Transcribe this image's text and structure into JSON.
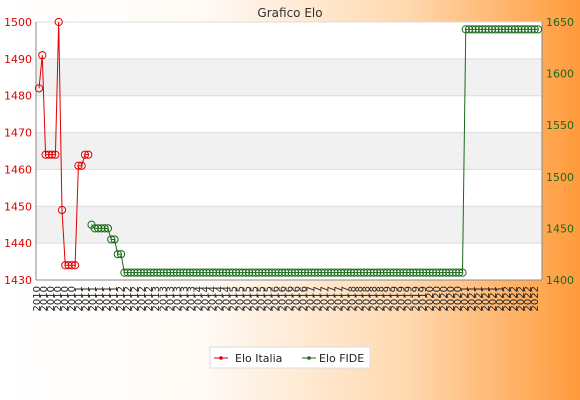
{
  "chart_data": {
    "type": "line",
    "title": "Grafico Elo",
    "x_tick_labels": [
      "2010",
      "2011",
      "2012",
      "2013",
      "2014",
      "2015",
      "2016",
      "2017",
      "2018",
      "2019",
      "2020",
      "2021",
      "2022"
    ],
    "axes": {
      "left": {
        "ylim": [
          1430,
          1500
        ],
        "ticks": [
          1430,
          1440,
          1450,
          1460,
          1470,
          1480,
          1490,
          1500
        ],
        "color": "#e00000"
      },
      "right": {
        "ylim": [
          1400,
          1650
        ],
        "ticks": [
          1400,
          1450,
          1500,
          1550,
          1600,
          1650
        ],
        "color": "#1a6a1a"
      }
    },
    "grid": true,
    "legend_position": "bottom",
    "series": [
      {
        "name": "Elo Italia",
        "axis": "left",
        "color": "#e00000",
        "values": [
          1482,
          1491,
          1464,
          1464,
          1464,
          1464,
          1500,
          1449,
          1434,
          1434,
          1434,
          1434,
          1461,
          1461,
          1464,
          1464
        ]
      },
      {
        "name": "Elo FIDE",
        "axis": "left",
        "color": "#1a6a1a",
        "start_index": 16,
        "values": [
          1445,
          1444,
          1444,
          1444,
          1444,
          1444,
          1441,
          1441,
          1437,
          1437,
          1432,
          1432,
          1432,
          1432,
          1432,
          1432,
          1432,
          1432,
          1432,
          1432,
          1432,
          1432,
          1432,
          1432,
          1432,
          1432,
          1432,
          1432,
          1432,
          1432,
          1432,
          1432,
          1432,
          1432,
          1432,
          1432,
          1432,
          1432,
          1432,
          1432,
          1432,
          1432,
          1432,
          1432,
          1432,
          1432,
          1432,
          1432,
          1432,
          1432,
          1432,
          1432,
          1432,
          1432,
          1432,
          1432,
          1432,
          1432,
          1432,
          1432,
          1432,
          1432,
          1432,
          1432,
          1432,
          1432,
          1432,
          1432,
          1432,
          1432,
          1432,
          1432,
          1432,
          1432,
          1432,
          1432,
          1432,
          1432,
          1432,
          1432,
          1432,
          1432,
          1432,
          1432,
          1432,
          1432,
          1432,
          1432,
          1432,
          1432,
          1432,
          1432,
          1432,
          1432,
          1432,
          1432,
          1432,
          1432,
          1432,
          1432,
          1432,
          1432,
          1432,
          1432,
          1432,
          1432,
          1432,
          1432,
          1432,
          1432,
          1432,
          1432,
          1432,
          1432,
          1498,
          1498,
          1498,
          1498,
          1498,
          1498,
          1498,
          1498,
          1498,
          1498,
          1498,
          1498,
          1498,
          1498,
          1498,
          1498,
          1498,
          1498,
          1498,
          1498,
          1498,
          1498,
          1498
        ]
      }
    ]
  }
}
